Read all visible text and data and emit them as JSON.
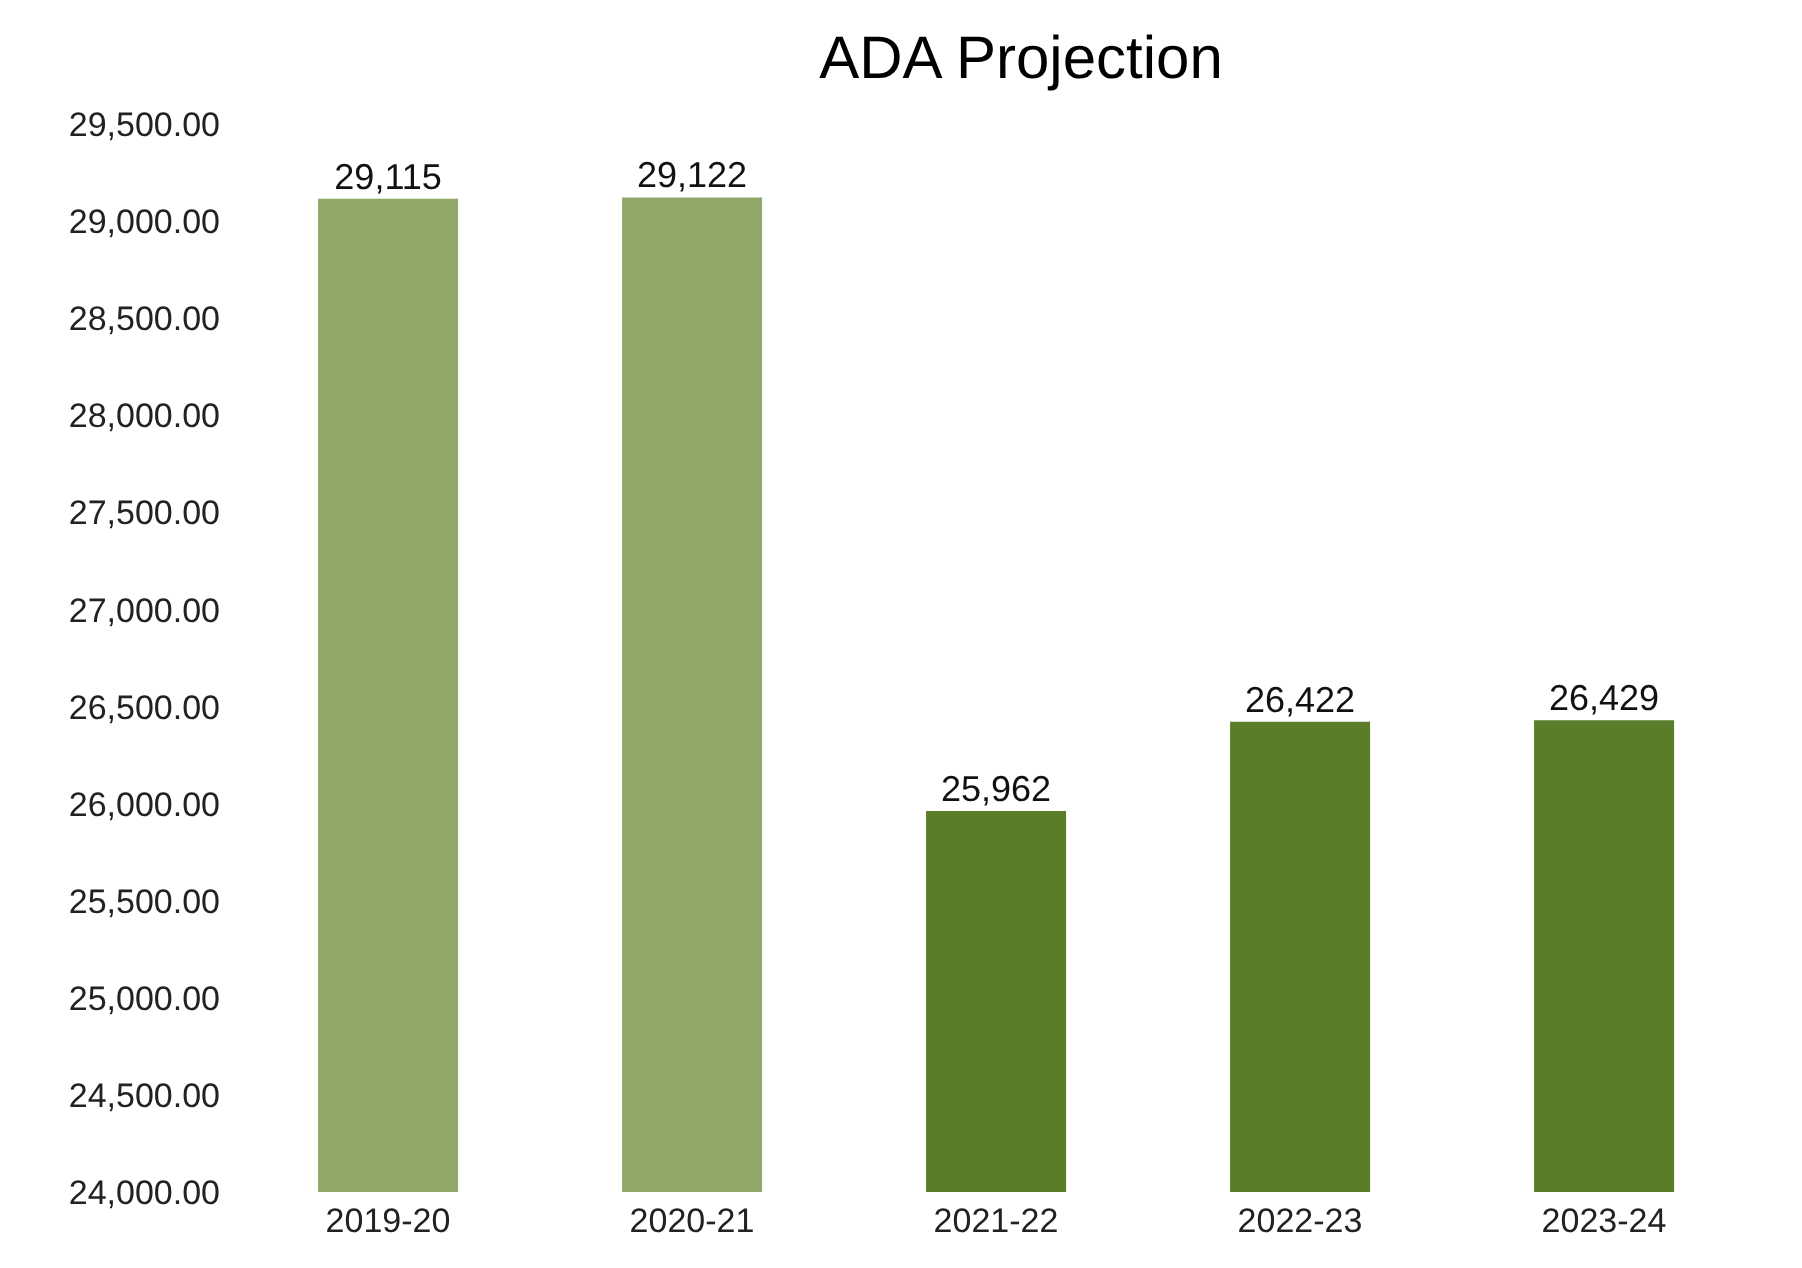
{
  "chart_data": {
    "type": "bar",
    "title": "ADA Projection",
    "categories": [
      "2019-20",
      "2020-21",
      "2021-22",
      "2022-23",
      "2023-24"
    ],
    "values": [
      29115,
      29122,
      25962,
      26422,
      26429
    ],
    "colors": [
      "#8fa86a",
      "#8fa86a",
      "#5b7d2a",
      "#5b7d2a",
      "#5b7d2a"
    ],
    "value_labels": [
      "29,115",
      "29,122",
      "25,962",
      "26,422",
      "26,429"
    ],
    "ylim": [
      24000,
      29500
    ],
    "yticks": [
      {
        "value": 24000,
        "label": "24,000.00"
      },
      {
        "value": 24500,
        "label": "24,500.00"
      },
      {
        "value": 25000,
        "label": "25,000.00"
      },
      {
        "value": 25500,
        "label": "25,500.00"
      },
      {
        "value": 26000,
        "label": "26,000.00"
      },
      {
        "value": 26500,
        "label": "26,500.00"
      },
      {
        "value": 27000,
        "label": "27,000.00"
      },
      {
        "value": 27500,
        "label": "27,500.00"
      },
      {
        "value": 28000,
        "label": "28,000.00"
      },
      {
        "value": 28500,
        "label": "28,500.00"
      },
      {
        "value": 29000,
        "label": "29,000.00"
      },
      {
        "value": 29500,
        "label": "29,500.00"
      }
    ],
    "grid": false
  }
}
